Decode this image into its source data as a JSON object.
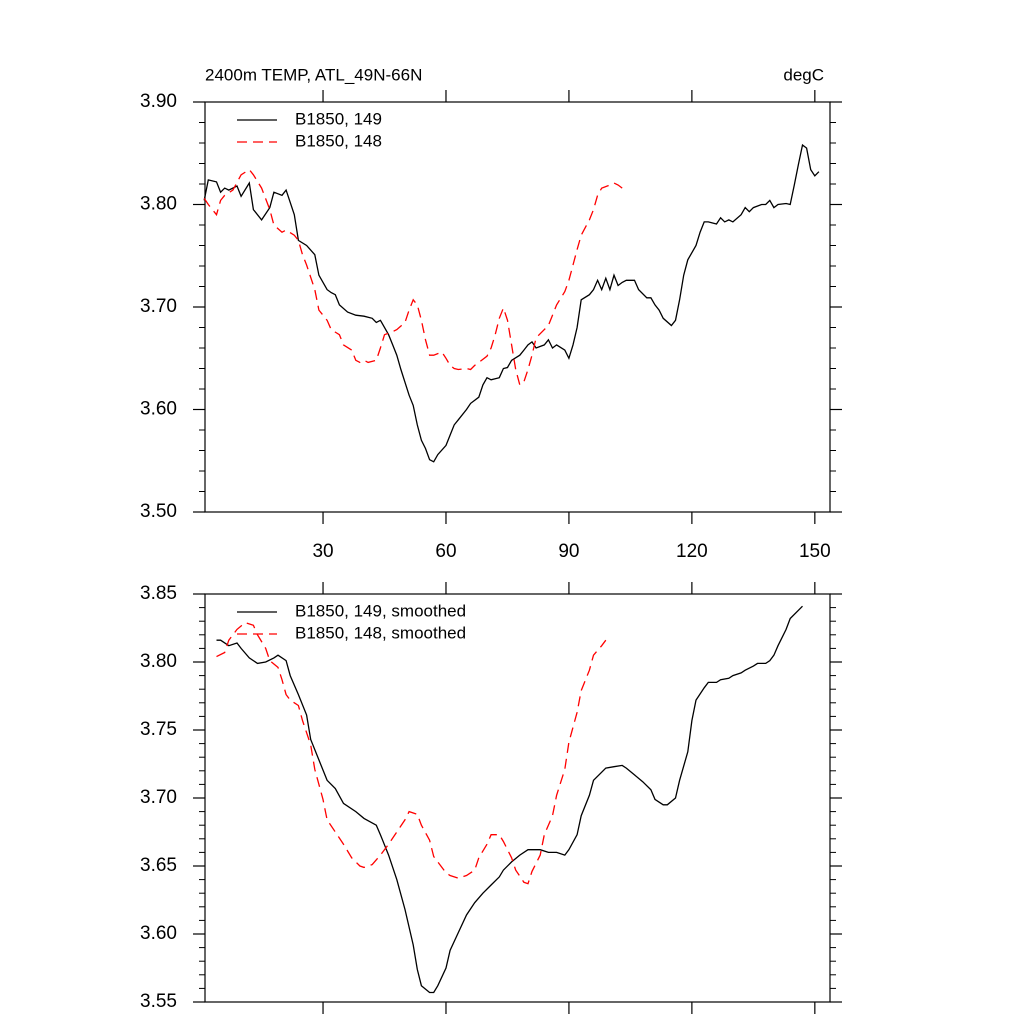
{
  "chart_data": [
    {
      "type": "line",
      "title": "2400m TEMP, ATL_49N-66N",
      "units": "degC",
      "legend": "upper left",
      "xlim": [
        1.2,
        153.7
      ],
      "xticks": [
        30,
        60,
        90,
        120,
        150
      ],
      "ylim": [
        3.5,
        3.9
      ],
      "yticks": [
        {
          "value": 3.5,
          "label": "3.50"
        },
        {
          "value": 3.6,
          "label": "3.60"
        },
        {
          "value": 3.7,
          "label": "3.70"
        },
        {
          "value": 3.8,
          "label": "3.80"
        },
        {
          "value": 3.9,
          "label": "3.90"
        }
      ],
      "yminorticks": [
        3.52,
        3.54,
        3.56,
        3.58,
        3.62,
        3.64,
        3.66,
        3.68,
        3.72,
        3.74,
        3.76,
        3.78,
        3.82,
        3.84,
        3.86,
        3.88
      ],
      "series": [
        {
          "name": "B1850, 149",
          "color": "#000000",
          "line_style": "solid",
          "x": [
            1,
            2,
            4,
            5,
            6,
            7,
            9,
            10,
            12,
            13,
            15,
            17,
            18,
            20,
            21,
            23,
            24,
            26,
            28,
            29,
            31,
            32,
            33,
            34,
            36,
            38,
            40,
            42,
            43,
            44,
            46,
            47,
            48,
            49,
            51,
            52,
            53,
            54,
            55,
            56,
            57,
            58,
            60,
            61,
            62,
            63,
            65,
            66,
            68,
            69,
            70,
            71,
            73,
            74,
            75,
            76,
            78,
            79,
            80,
            81,
            82,
            84,
            85,
            86,
            87,
            89,
            90,
            91,
            92,
            93,
            95,
            96,
            97,
            98,
            99,
            100,
            101,
            102,
            103,
            104,
            106,
            107,
            109,
            110,
            111,
            112,
            113,
            115,
            116,
            117,
            118,
            119,
            121,
            122,
            123,
            124,
            126,
            127,
            128,
            129,
            130,
            132,
            133,
            134,
            135,
            137,
            138,
            139,
            140,
            141,
            143,
            144,
            145,
            146,
            147,
            148,
            149,
            150,
            151
          ],
          "values": [
            3.804,
            3.824,
            3.822,
            3.812,
            3.816,
            3.814,
            3.818,
            3.808,
            3.821,
            3.795,
            3.785,
            3.797,
            3.812,
            3.809,
            3.814,
            3.79,
            3.765,
            3.76,
            3.751,
            3.731,
            3.717,
            3.714,
            3.712,
            3.702,
            3.695,
            3.692,
            3.691,
            3.689,
            3.685,
            3.687,
            3.673,
            3.663,
            3.653,
            3.639,
            3.614,
            3.604,
            3.585,
            3.57,
            3.562,
            3.551,
            3.549,
            3.556,
            3.565,
            3.575,
            3.585,
            3.59,
            3.6,
            3.606,
            3.612,
            3.624,
            3.631,
            3.629,
            3.631,
            3.64,
            3.641,
            3.648,
            3.653,
            3.658,
            3.663,
            3.666,
            3.66,
            3.663,
            3.668,
            3.66,
            3.663,
            3.658,
            3.65,
            3.663,
            3.68,
            3.707,
            3.712,
            3.717,
            3.726,
            3.717,
            3.728,
            3.717,
            3.731,
            3.721,
            3.724,
            3.726,
            3.726,
            3.717,
            3.709,
            3.709,
            3.702,
            3.697,
            3.689,
            3.682,
            3.687,
            3.707,
            3.731,
            3.746,
            3.76,
            3.773,
            3.783,
            3.783,
            3.781,
            3.787,
            3.783,
            3.785,
            3.783,
            3.79,
            3.797,
            3.793,
            3.797,
            3.8,
            3.8,
            3.804,
            3.797,
            3.8,
            3.801,
            3.8,
            3.819,
            3.839,
            3.858,
            3.855,
            3.834,
            3.828,
            3.832
          ]
        },
        {
          "name": "B1850, 148",
          "color": "#ff0000",
          "line_style": "dashed",
          "x": [
            1,
            2,
            4,
            5,
            6,
            8,
            10,
            12,
            13,
            15,
            17,
            18,
            20,
            21,
            23,
            24,
            25,
            26,
            28,
            29,
            31,
            32,
            34,
            35,
            37,
            38,
            39,
            40,
            41,
            43,
            44,
            45,
            47,
            48,
            50,
            51,
            52,
            53,
            54,
            55,
            56,
            57,
            59,
            60,
            61,
            62,
            63,
            65,
            66,
            67,
            68,
            70,
            71,
            72,
            73,
            74,
            75,
            76,
            77,
            78,
            79,
            80,
            81,
            82,
            84,
            85,
            86,
            87,
            89,
            90,
            91,
            92,
            93,
            95,
            96,
            97,
            98,
            100,
            101,
            102,
            103
          ],
          "values": [
            3.806,
            3.8,
            3.79,
            3.804,
            3.809,
            3.814,
            3.829,
            3.834,
            3.829,
            3.816,
            3.795,
            3.78,
            3.773,
            3.775,
            3.77,
            3.765,
            3.751,
            3.741,
            3.717,
            3.697,
            3.687,
            3.678,
            3.673,
            3.663,
            3.658,
            3.648,
            3.646,
            3.648,
            3.646,
            3.648,
            3.66,
            3.673,
            3.676,
            3.678,
            3.685,
            3.697,
            3.707,
            3.702,
            3.687,
            3.668,
            3.653,
            3.653,
            3.656,
            3.65,
            3.643,
            3.64,
            3.639,
            3.64,
            3.639,
            3.643,
            3.646,
            3.652,
            3.66,
            3.673,
            3.689,
            3.699,
            3.687,
            3.663,
            3.639,
            3.624,
            3.627,
            3.639,
            3.653,
            3.67,
            3.678,
            3.682,
            3.692,
            3.702,
            3.715,
            3.726,
            3.741,
            3.756,
            3.77,
            3.785,
            3.795,
            3.809,
            3.816,
            3.819,
            3.821,
            3.819,
            3.816
          ]
        }
      ]
    },
    {
      "type": "line",
      "legend": "upper left",
      "xlim": [
        1.2,
        153.7
      ],
      "xticks": [
        30,
        60,
        90,
        120,
        150
      ],
      "ylim": [
        3.55,
        3.85
      ],
      "yticks": [
        3.55,
        {
          "value": 3.6,
          "label": "3.60"
        },
        3.65,
        {
          "value": 3.7,
          "label": "3.70"
        },
        3.75,
        {
          "value": 3.8,
          "label": "3.80"
        },
        3.85
      ],
      "yminorticks": [
        3.56,
        3.57,
        3.58,
        3.59,
        3.61,
        3.62,
        3.63,
        3.64,
        3.66,
        3.67,
        3.68,
        3.69,
        3.71,
        3.72,
        3.73,
        3.74,
        3.76,
        3.77,
        3.78,
        3.79,
        3.81,
        3.82,
        3.83,
        3.84
      ],
      "series": [
        {
          "name": "B1850, 149, smoothed",
          "color": "#000000",
          "line_style": "solid",
          "x": [
            4,
            5,
            7,
            9,
            10,
            12,
            14,
            16,
            18,
            19,
            21,
            22,
            24,
            26,
            27,
            29,
            31,
            33,
            35,
            38,
            40,
            43,
            44,
            46,
            48,
            50,
            52,
            53,
            54,
            56,
            57,
            58,
            60,
            61,
            63,
            65,
            67,
            69,
            71,
            73,
            74,
            76,
            78,
            80,
            82,
            83,
            85,
            87,
            89,
            90,
            92,
            93,
            95,
            96,
            98,
            99,
            101,
            103,
            104,
            106,
            108,
            110,
            111,
            113,
            114,
            116,
            117,
            119,
            120,
            121,
            123,
            124,
            126,
            127,
            129,
            130,
            132,
            133,
            135,
            136,
            138,
            139,
            140,
            141,
            143,
            144,
            146,
            147
          ],
          "values": [
            3.816,
            3.816,
            3.812,
            3.814,
            3.81,
            3.803,
            3.799,
            3.8,
            3.803,
            3.805,
            3.801,
            3.79,
            3.776,
            3.761,
            3.743,
            3.728,
            3.713,
            3.707,
            3.696,
            3.69,
            3.685,
            3.68,
            3.673,
            3.658,
            3.64,
            3.618,
            3.592,
            3.574,
            3.562,
            3.557,
            3.557,
            3.562,
            3.575,
            3.588,
            3.601,
            3.614,
            3.623,
            3.63,
            3.636,
            3.642,
            3.647,
            3.653,
            3.658,
            3.662,
            3.662,
            3.662,
            3.66,
            3.66,
            3.658,
            3.662,
            3.673,
            3.687,
            3.702,
            3.713,
            3.719,
            3.722,
            3.723,
            3.724,
            3.722,
            3.717,
            3.712,
            3.706,
            3.699,
            3.695,
            3.695,
            3.7,
            3.713,
            3.734,
            3.757,
            3.772,
            3.781,
            3.785,
            3.785,
            3.787,
            3.788,
            3.79,
            3.792,
            3.794,
            3.797,
            3.799,
            3.799,
            3.801,
            3.805,
            3.812,
            3.824,
            3.832,
            3.838,
            3.841
          ]
        },
        {
          "name": "B1850, 148, smoothed",
          "color": "#ff0000",
          "line_style": "dashed",
          "x": [
            4,
            6,
            7,
            9,
            11,
            13,
            14,
            16,
            17,
            19,
            20,
            21,
            22,
            24,
            25,
            27,
            28,
            30,
            31,
            33,
            35,
            37,
            39,
            40,
            42,
            44,
            46,
            48,
            50,
            51,
            53,
            54,
            56,
            57,
            59,
            60,
            61,
            63,
            65,
            67,
            68,
            70,
            71,
            73,
            74,
            76,
            77,
            79,
            80,
            81,
            83,
            84,
            86,
            87,
            89,
            90,
            92,
            93,
            95,
            96,
            98,
            99
          ],
          "values": [
            3.804,
            3.807,
            3.816,
            3.824,
            3.829,
            3.827,
            3.82,
            3.81,
            3.801,
            3.796,
            3.787,
            3.776,
            3.772,
            3.768,
            3.757,
            3.739,
            3.721,
            3.699,
            3.684,
            3.675,
            3.666,
            3.656,
            3.65,
            3.649,
            3.651,
            3.658,
            3.666,
            3.675,
            3.684,
            3.69,
            3.688,
            3.68,
            3.669,
            3.657,
            3.649,
            3.645,
            3.643,
            3.641,
            3.643,
            3.647,
            3.656,
            3.666,
            3.673,
            3.673,
            3.668,
            3.656,
            3.647,
            3.638,
            3.637,
            3.646,
            3.658,
            3.673,
            3.687,
            3.702,
            3.721,
            3.741,
            3.763,
            3.779,
            3.794,
            3.805,
            3.812,
            3.816
          ]
        }
      ]
    }
  ]
}
